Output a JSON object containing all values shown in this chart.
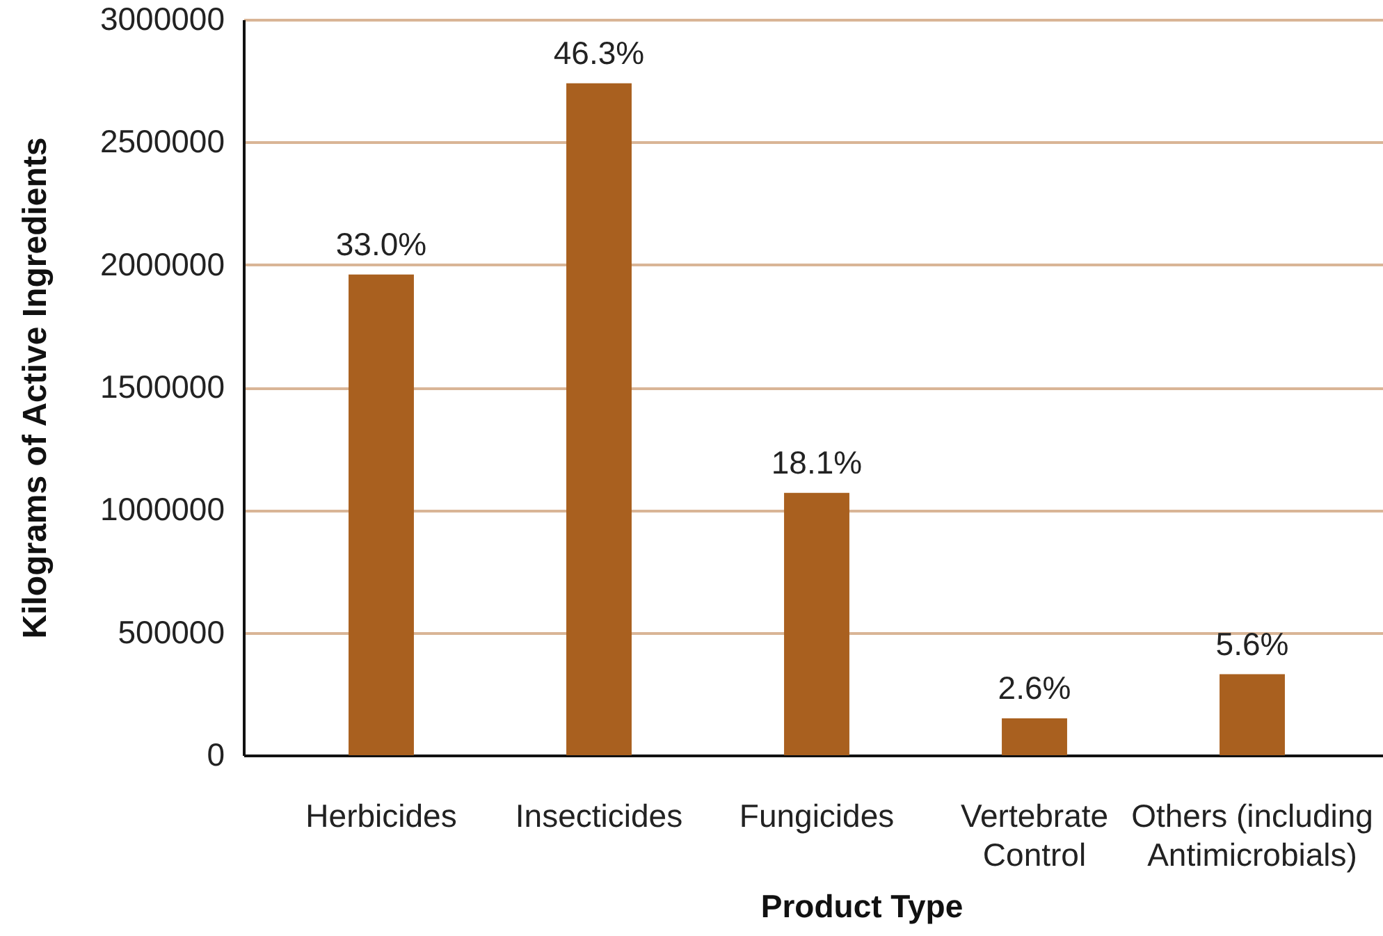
{
  "chart_data": {
    "type": "bar",
    "xlabel": "Product Type",
    "ylabel": "Kilograms of Active Ingredients",
    "categories": [
      "Herbicides",
      "Insecticides",
      "Fungicides",
      "Vertebrate Control",
      "Others (including Antimicrobials)"
    ],
    "values": [
      1960000,
      2740000,
      1070000,
      150000,
      330000
    ],
    "color": "#a9601f",
    "ylim": [
      0,
      3000000
    ],
    "yticks": [
      0,
      500000,
      1000000,
      1500000,
      2000000,
      2500000,
      3000000
    ],
    "grid": "y",
    "annotations": [
      {
        "text": "33.0%",
        "x": "Herbicides",
        "y": 1960000
      },
      {
        "text": "46.3%",
        "x": "Insecticides",
        "y": 2740000
      },
      {
        "text": "18.1%",
        "x": "Fungicides",
        "y": 1070000
      },
      {
        "text": "2.6%",
        "x": "Vertebrate Control",
        "y": 150000
      },
      {
        "text": "5.6%",
        "x": "Others (including Antimicrobials)",
        "y": 330000
      }
    ]
  }
}
